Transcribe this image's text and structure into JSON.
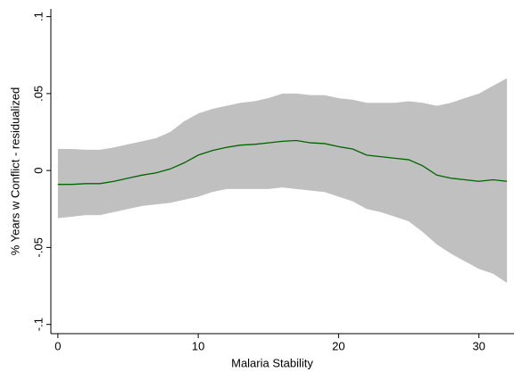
{
  "chart_data": {
    "type": "line",
    "x_label": "Malaria Stability",
    "y_label": "% Years w Conflict - residualized",
    "x": [
      0,
      1,
      2,
      3,
      4,
      5,
      6,
      7,
      8,
      9,
      10,
      11,
      12,
      13,
      14,
      15,
      16,
      17,
      18,
      19,
      20,
      21,
      22,
      23,
      24,
      25,
      26,
      27,
      28,
      29,
      30,
      31,
      32
    ],
    "series": [
      {
        "color": "#006400",
        "values": [
          -0.009,
          -0.009,
          -0.0085,
          -0.0085,
          -0.007,
          -0.005,
          -0.003,
          -0.0015,
          0.001,
          0.005,
          0.01,
          0.013,
          0.015,
          0.0165,
          0.017,
          0.018,
          0.019,
          0.0195,
          0.018,
          0.0175,
          0.0155,
          0.014,
          0.01,
          0.009,
          0.008,
          0.007,
          0.003,
          -0.003,
          -0.005,
          -0.006,
          -0.007,
          -0.006,
          -0.007
        ]
      }
    ],
    "band": {
      "color": "#c0c0c0",
      "upper": [
        0.014,
        0.014,
        0.0135,
        0.0135,
        0.015,
        0.017,
        0.019,
        0.021,
        0.025,
        0.032,
        0.037,
        0.04,
        0.042,
        0.044,
        0.045,
        0.047,
        0.05,
        0.05,
        0.049,
        0.049,
        0.047,
        0.046,
        0.044,
        0.044,
        0.044,
        0.045,
        0.044,
        0.042,
        0.044,
        0.047,
        0.05,
        0.055,
        0.06
      ],
      "lower": [
        -0.031,
        -0.03,
        -0.029,
        -0.029,
        -0.027,
        -0.025,
        -0.023,
        -0.022,
        -0.021,
        -0.019,
        -0.017,
        -0.014,
        -0.012,
        -0.012,
        -0.012,
        -0.012,
        -0.011,
        -0.012,
        -0.013,
        -0.014,
        -0.017,
        -0.02,
        -0.025,
        -0.027,
        -0.03,
        -0.033,
        -0.04,
        -0.048,
        -0.054,
        -0.059,
        -0.064,
        -0.067,
        -0.073
      ]
    },
    "xlim": [
      -0.5,
      32.5
    ],
    "ylim": [
      -0.106,
      0.105
    ],
    "xticks": [
      0,
      10,
      20,
      30
    ],
    "yticks": [
      {
        "value": -0.1,
        "label": "-.1"
      },
      {
        "value": -0.05,
        "label": "-.05"
      },
      0,
      {
        "value": 0.05,
        "label": ".05"
      },
      {
        "value": 0.1,
        "label": ".1"
      }
    ]
  }
}
